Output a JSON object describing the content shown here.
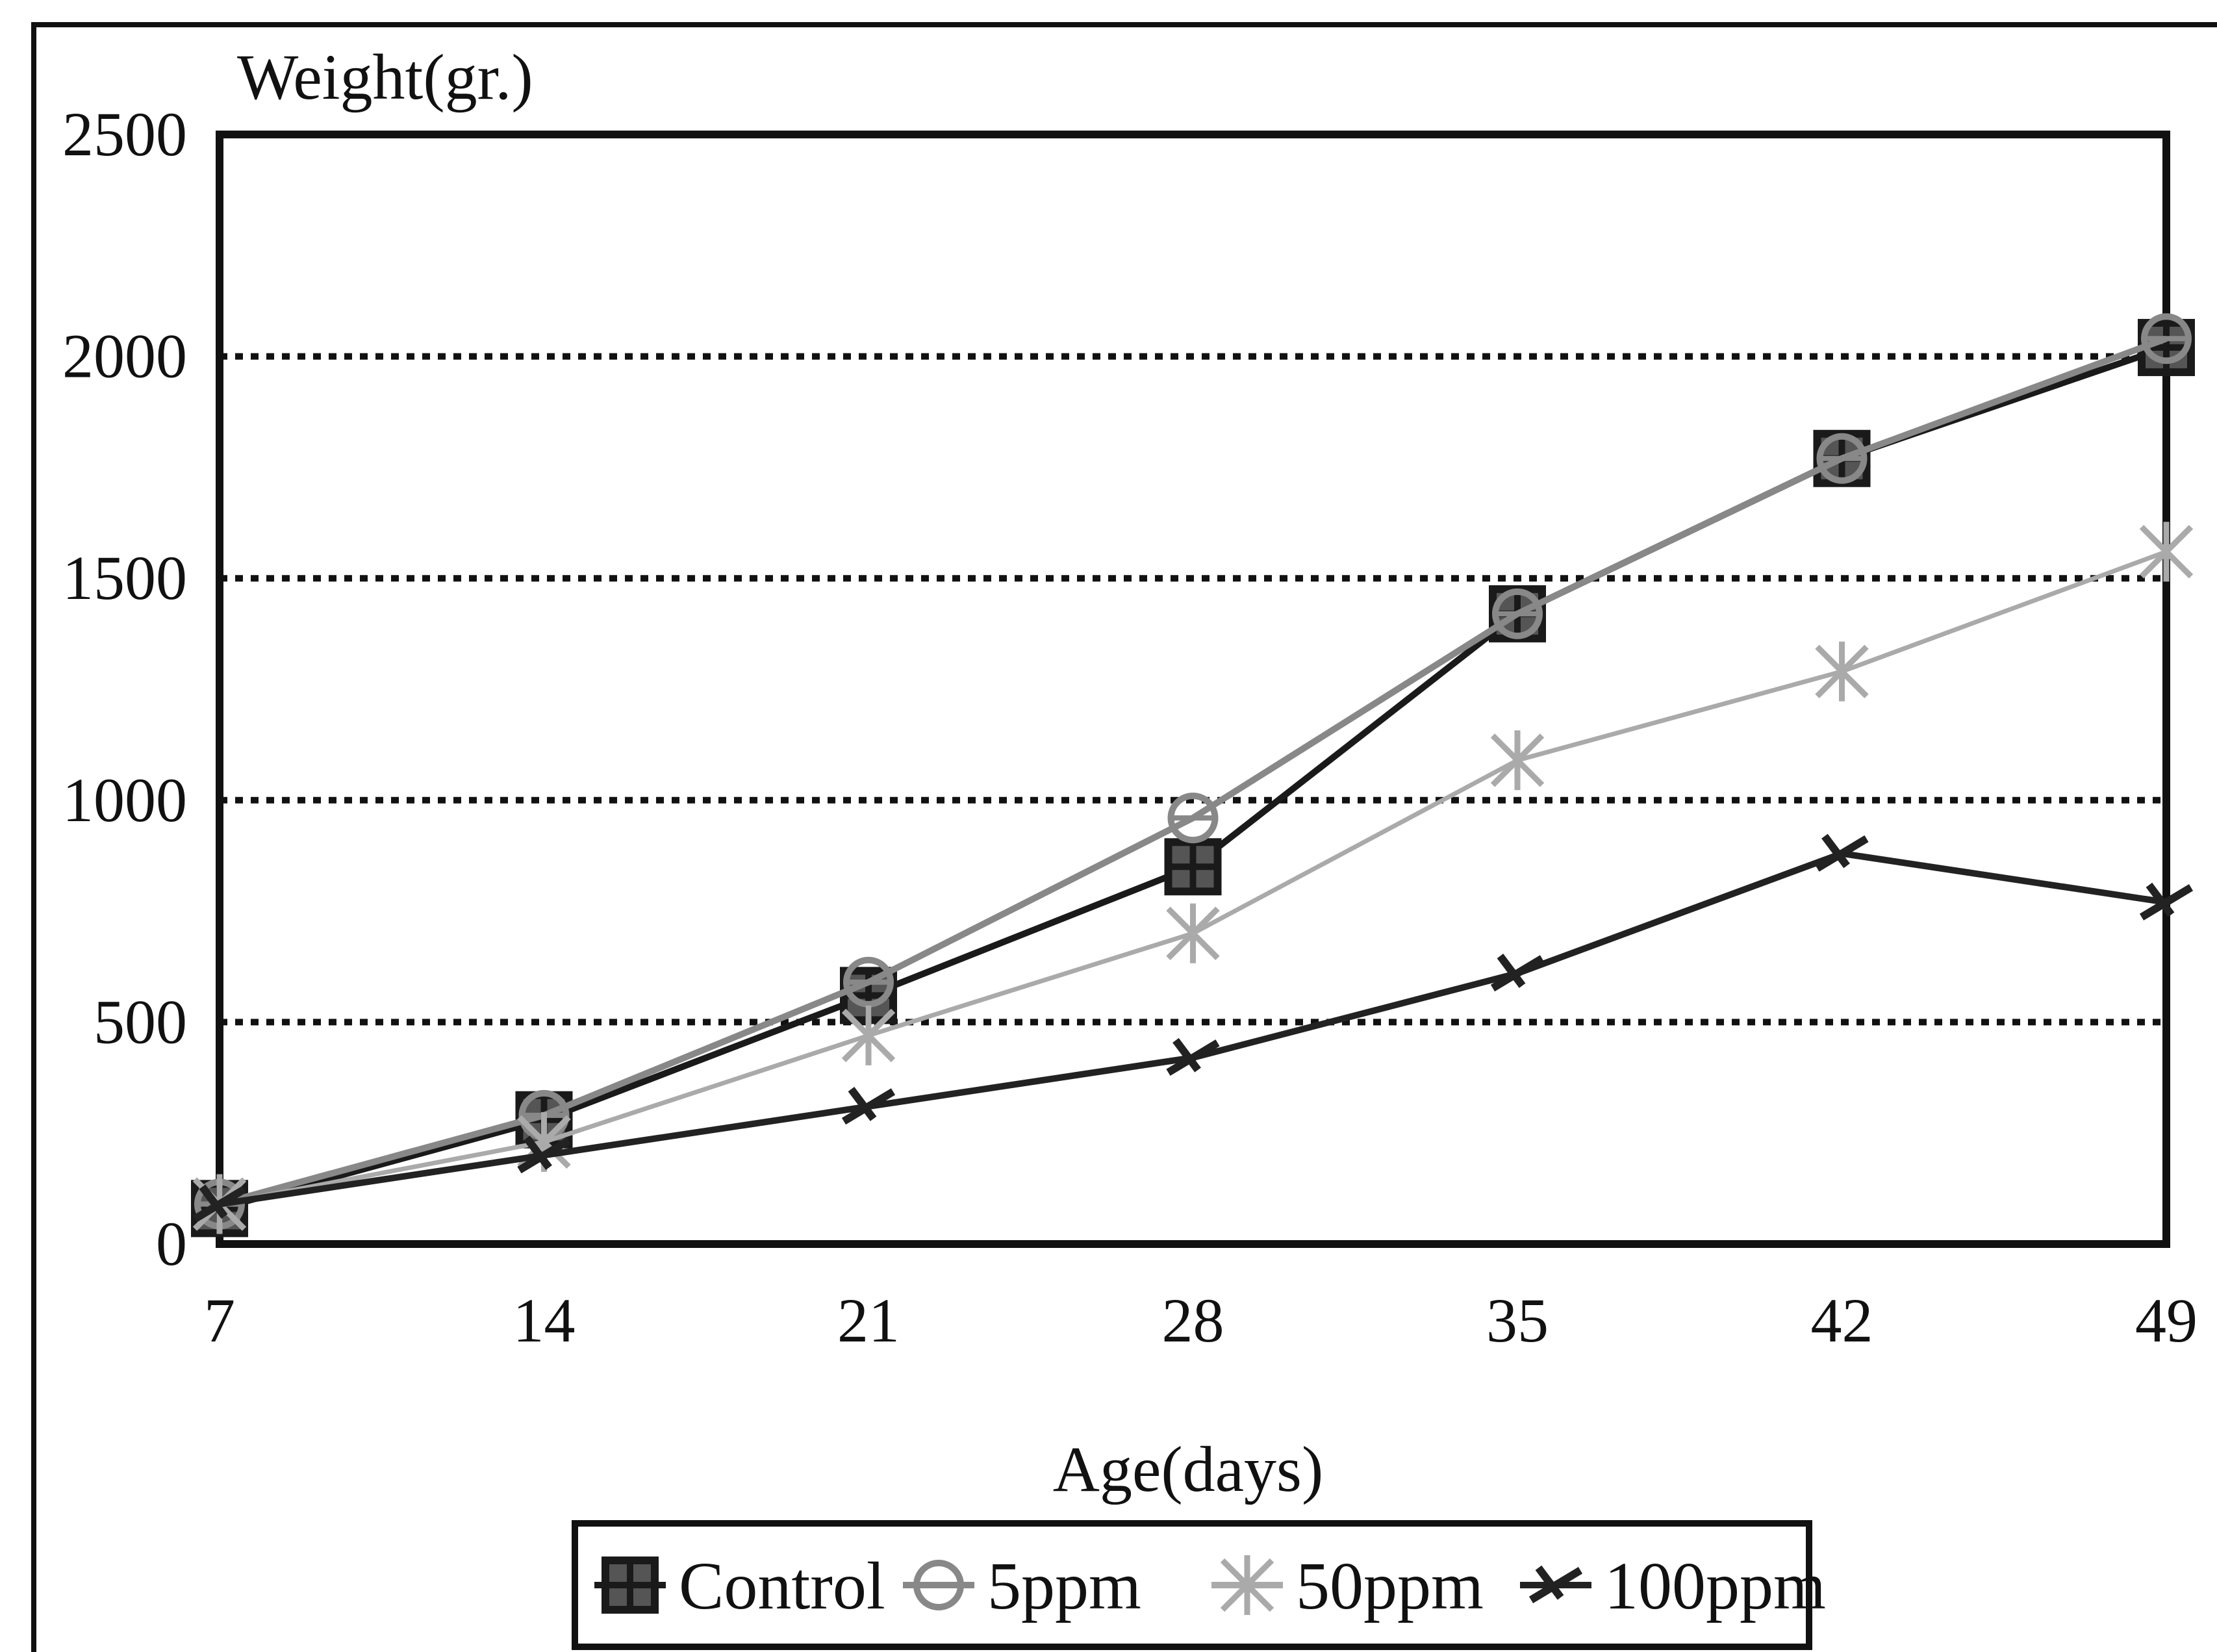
{
  "chart_data": {
    "type": "line",
    "title": "",
    "xlabel": "Age(days)",
    "ylabel": "Weight(gr.)",
    "x": [
      7,
      14,
      21,
      28,
      35,
      42,
      49
    ],
    "x_ticks": [
      "7",
      "14",
      "21",
      "28",
      "35",
      "42",
      "49"
    ],
    "y_ticks": [
      "0",
      "500",
      "1000",
      "1500",
      "2000",
      "2500"
    ],
    "xlim": [
      7,
      49
    ],
    "ylim": [
      0,
      2500
    ],
    "grid": "horizontal-dotted",
    "legend_position": "bottom",
    "series": [
      {
        "name": "Control",
        "values": [
          80,
          280,
          560,
          850,
          1420,
          1770,
          2020
        ],
        "color": "#1a1a1a",
        "marker": "square"
      },
      {
        "name": "5ppm",
        "values": [
          90,
          290,
          590,
          960,
          1420,
          1770,
          2040
        ],
        "color": "#888888",
        "marker": "circle"
      },
      {
        "name": "50ppm",
        "values": [
          90,
          230,
          470,
          700,
          1090,
          1290,
          1560
        ],
        "color": "#aaaaaa",
        "marker": "star"
      },
      {
        "name": "100ppm",
        "values": [
          90,
          200,
          310,
          420,
          610,
          880,
          770
        ],
        "color": "#222222",
        "marker": "cross"
      }
    ]
  }
}
